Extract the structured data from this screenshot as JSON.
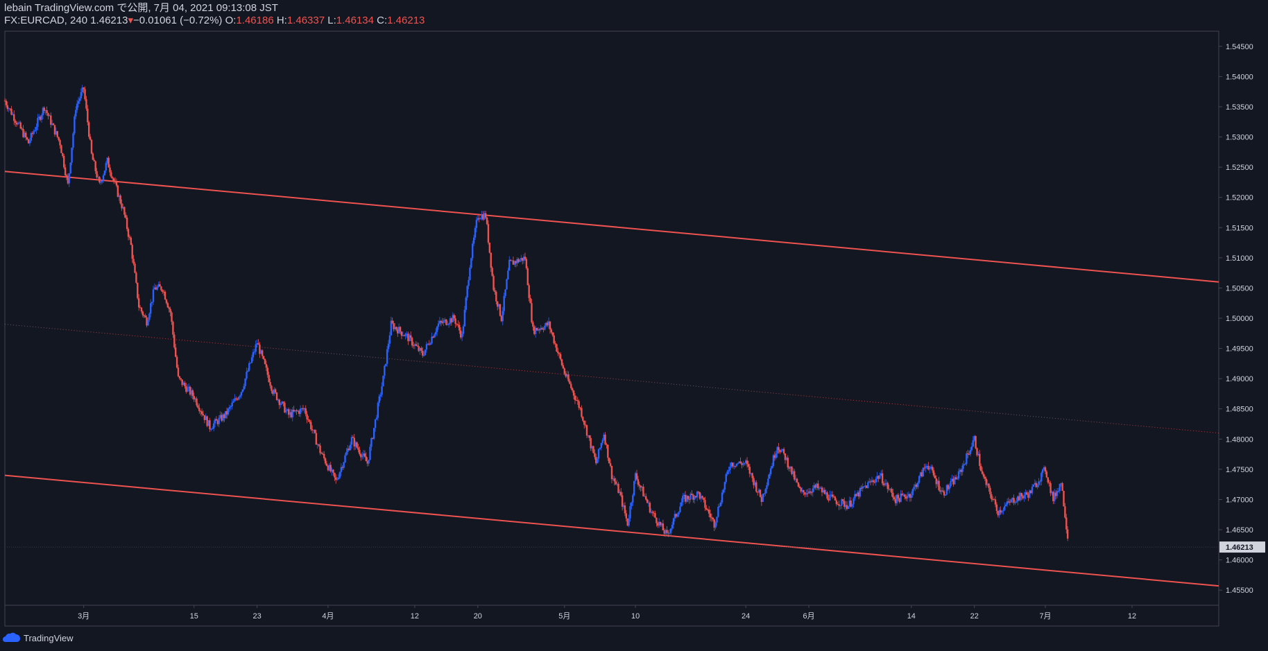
{
  "header": {
    "publish_line": "lebain TradingView.com で公開, 7月 04, 2021 09:13:08 JST",
    "symbol": "FX:EURCAD, 240",
    "last": "1.46213",
    "change": "−0.01061 (−0.72%)",
    "o_label": "O:",
    "o_value": "1.46186",
    "h_label": "H:",
    "h_value": "1.46337",
    "l_label": "L:",
    "l_value": "1.46134",
    "c_label": "C:",
    "c_value": "1.46213"
  },
  "footer": {
    "brand": "TradingView",
    "logo_icon": "tradingview-cloud-icon"
  },
  "colors": {
    "background": "#131722",
    "grid_border": "#2a2e39",
    "up": "#2962ff",
    "down": "#ef5350",
    "trendline": "#ef5350",
    "text": "#d1d4dc",
    "price_label_bg": "#d1d4dc"
  },
  "chart_data": {
    "type": "candlestick",
    "symbol": "FX:EURCAD",
    "interval": "240",
    "x_tick_labels": [
      "3月",
      "15",
      "23",
      "4月",
      "12",
      "20",
      "5月",
      "10",
      "24",
      "6月",
      "14",
      "22",
      "7月",
      "12"
    ],
    "x_tick_dates": [
      "2021-03-01",
      "2021-03-15",
      "2021-03-23",
      "2021-04-01",
      "2021-04-12",
      "2021-04-20",
      "2021-05-01",
      "2021-05-10",
      "2021-05-24",
      "2021-06-01",
      "2021-06-14",
      "2021-06-22",
      "2021-07-01",
      "2021-07-12"
    ],
    "x_range": [
      "2021-02-19",
      "2021-07-23"
    ],
    "y_ticks": [
      "1.54500",
      "1.54000",
      "1.53500",
      "1.53000",
      "1.52500",
      "1.52000",
      "1.51500",
      "1.51000",
      "1.50500",
      "1.50000",
      "1.49500",
      "1.49000",
      "1.48500",
      "1.48000",
      "1.47500",
      "1.47000",
      "1.46500",
      "1.46000",
      "1.45500"
    ],
    "ylim": [
      1.4525,
      1.5475
    ],
    "last_price": "1.46213",
    "last_price_value": 1.46213,
    "trendlines": [
      {
        "style": "solid",
        "points": [
          [
            "2021-02-19",
            1.5243
          ],
          [
            "2021-07-23",
            1.506
          ]
        ]
      },
      {
        "style": "dotted",
        "points": [
          [
            "2021-02-19",
            1.499
          ],
          [
            "2021-07-23",
            1.481
          ]
        ]
      },
      {
        "style": "solid",
        "points": [
          [
            "2021-02-19",
            1.474
          ],
          [
            "2021-07-23",
            1.4557
          ]
        ]
      }
    ],
    "price_path": [
      [
        "2021-02-19",
        1.536
      ],
      [
        "2021-02-22",
        1.529
      ],
      [
        "2021-02-24",
        1.535
      ],
      [
        "2021-02-26",
        1.529
      ],
      [
        "2021-02-27",
        1.522
      ],
      [
        "2021-02-28",
        1.535
      ],
      [
        "2021-03-01",
        1.538
      ],
      [
        "2021-03-02",
        1.527
      ],
      [
        "2021-03-03",
        1.522
      ],
      [
        "2021-03-04",
        1.526
      ],
      [
        "2021-03-05",
        1.522
      ],
      [
        "2021-03-06",
        1.518
      ],
      [
        "2021-03-07",
        1.512
      ],
      [
        "2021-03-08",
        1.502
      ],
      [
        "2021-03-09",
        1.4995
      ],
      [
        "2021-03-10",
        1.505
      ],
      [
        "2021-03-11",
        1.505
      ],
      [
        "2021-03-12",
        1.501
      ],
      [
        "2021-03-13",
        1.49
      ],
      [
        "2021-03-15",
        1.487
      ],
      [
        "2021-03-17",
        1.482
      ],
      [
        "2021-03-19",
        1.484
      ],
      [
        "2021-03-21",
        1.488
      ],
      [
        "2021-03-23",
        1.496
      ],
      [
        "2021-03-25",
        1.488
      ],
      [
        "2021-03-27",
        1.484
      ],
      [
        "2021-03-29",
        1.485
      ],
      [
        "2021-03-31",
        1.478
      ],
      [
        "2021-04-02",
        1.473
      ],
      [
        "2021-04-04",
        1.48
      ],
      [
        "2021-04-06",
        1.476
      ],
      [
        "2021-04-08",
        1.49
      ],
      [
        "2021-04-09",
        1.499
      ],
      [
        "2021-04-11",
        1.497
      ],
      [
        "2021-04-13",
        1.494
      ],
      [
        "2021-04-15",
        1.499
      ],
      [
        "2021-04-17",
        1.5
      ],
      [
        "2021-04-18",
        1.497
      ],
      [
        "2021-04-19",
        1.509
      ],
      [
        "2021-04-20",
        1.517
      ],
      [
        "2021-04-21",
        1.517
      ],
      [
        "2021-04-22",
        1.505
      ],
      [
        "2021-04-23",
        1.5
      ],
      [
        "2021-04-24",
        1.509
      ],
      [
        "2021-04-26",
        1.51
      ],
      [
        "2021-04-27",
        1.498
      ],
      [
        "2021-04-29",
        1.499
      ],
      [
        "2021-05-01",
        1.491
      ],
      [
        "2021-05-03",
        1.485
      ],
      [
        "2021-05-05",
        1.476
      ],
      [
        "2021-05-06",
        1.481
      ],
      [
        "2021-05-07",
        1.474
      ],
      [
        "2021-05-08",
        1.471
      ],
      [
        "2021-05-09",
        1.466
      ],
      [
        "2021-05-10",
        1.474
      ],
      [
        "2021-05-12",
        1.468
      ],
      [
        "2021-05-14",
        1.464
      ],
      [
        "2021-05-16",
        1.47
      ],
      [
        "2021-05-18",
        1.471
      ],
      [
        "2021-05-20",
        1.466
      ],
      [
        "2021-05-22",
        1.476
      ],
      [
        "2021-05-24",
        1.476
      ],
      [
        "2021-05-26",
        1.47
      ],
      [
        "2021-05-28",
        1.479
      ],
      [
        "2021-05-29",
        1.477
      ],
      [
        "2021-05-31",
        1.471
      ],
      [
        "2021-06-02",
        1.472
      ],
      [
        "2021-06-04",
        1.47
      ],
      [
        "2021-06-06",
        1.469
      ],
      [
        "2021-06-08",
        1.472
      ],
      [
        "2021-06-10",
        1.474
      ],
      [
        "2021-06-12",
        1.47
      ],
      [
        "2021-06-14",
        1.471
      ],
      [
        "2021-06-16",
        1.476
      ],
      [
        "2021-06-18",
        1.471
      ],
      [
        "2021-06-20",
        1.474
      ],
      [
        "2021-06-22",
        1.48
      ],
      [
        "2021-06-23",
        1.474
      ],
      [
        "2021-06-25",
        1.468
      ],
      [
        "2021-06-27",
        1.47
      ],
      [
        "2021-06-29",
        1.471
      ],
      [
        "2021-07-01",
        1.475
      ],
      [
        "2021-07-02",
        1.47
      ],
      [
        "2021-07-03",
        1.473
      ],
      [
        "2021-07-04",
        1.4621
      ]
    ]
  }
}
